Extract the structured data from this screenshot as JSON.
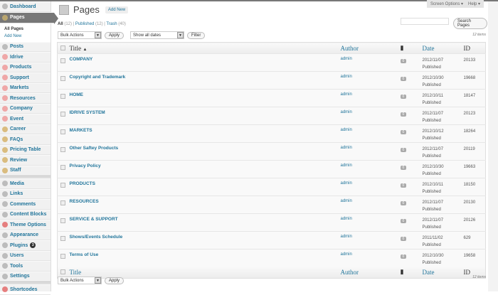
{
  "sidebar": {
    "items": [
      {
        "label": "Dashboard",
        "icon": "dashboard-icon",
        "color": "#999"
      },
      {
        "label": "Pages",
        "icon": "pages-icon",
        "current": true,
        "sub": [
          "All Pages",
          "Add New"
        ]
      },
      {
        "label": "Posts",
        "icon": "pin-icon",
        "color": "#999"
      },
      {
        "label": "Idrive",
        "icon": "custom-type-icon",
        "color": "#e77"
      },
      {
        "label": "Products",
        "icon": "custom-type-icon",
        "color": "#e77"
      },
      {
        "label": "Support",
        "icon": "custom-type-icon",
        "color": "#e77"
      },
      {
        "label": "Markets",
        "icon": "custom-type-icon",
        "color": "#e77"
      },
      {
        "label": "Resources",
        "icon": "custom-type-icon",
        "color": "#e77"
      },
      {
        "label": "Company",
        "icon": "custom-type-icon",
        "color": "#e77"
      },
      {
        "label": "Event",
        "icon": "custom-type-icon",
        "color": "#e77"
      },
      {
        "label": "Career",
        "icon": "blocks-icon",
        "color": "#c93"
      },
      {
        "label": "FAQs",
        "icon": "blocks-icon",
        "color": "#c93"
      },
      {
        "label": "Pricing Table",
        "icon": "blocks-icon",
        "color": "#c93"
      },
      {
        "label": "Review",
        "icon": "blocks-icon",
        "color": "#c93"
      },
      {
        "label": "Staff",
        "icon": "blocks-icon",
        "color": "#c93",
        "sep_after": true
      },
      {
        "label": "Media",
        "icon": "media-icon",
        "color": "#999"
      },
      {
        "label": "Links",
        "icon": "links-icon",
        "color": "#999"
      },
      {
        "label": "Comments",
        "icon": "comments-icon",
        "color": "#999"
      },
      {
        "label": "Content Blocks",
        "icon": "content-blocks-icon",
        "color": "#999"
      },
      {
        "label": "Theme Options",
        "icon": "theme-options-icon",
        "color": "#d33"
      },
      {
        "label": "Appearance",
        "icon": "appearance-icon",
        "color": "#999"
      },
      {
        "label": "Plugins",
        "icon": "plugins-icon",
        "color": "#999",
        "badge": "3"
      },
      {
        "label": "Users",
        "icon": "users-icon",
        "color": "#999"
      },
      {
        "label": "Tools",
        "icon": "tools-icon",
        "color": "#999"
      },
      {
        "label": "Settings",
        "icon": "settings-icon",
        "color": "#999",
        "sep_after": true
      },
      {
        "label": "Shortcodes",
        "icon": "shortcodes-icon",
        "color": "#d33"
      }
    ]
  },
  "header": {
    "title": "Pages",
    "add_new": "Add New",
    "screen_options": "Screen Options ▾",
    "help": "Help ▾"
  },
  "filters": {
    "all": "All",
    "all_count": "(12)",
    "published": "Published",
    "published_count": "(12)",
    "trash": "Trash",
    "trash_count": "(40)"
  },
  "search": {
    "value": "",
    "button": "Search Pages"
  },
  "actions": {
    "bulk": "Bulk Actions",
    "apply": "Apply",
    "dates": "Show all dates",
    "filter": "Filter"
  },
  "items_count": "12 items",
  "columns": {
    "title": "Title",
    "author": "Author",
    "date": "Date",
    "id": "ID"
  },
  "rows": [
    {
      "title": "COMPANY",
      "author": "admin",
      "comments": "0",
      "date": "2012/11/07",
      "status": "Published",
      "id": "20133"
    },
    {
      "title": "Copyright and Trademark",
      "author": "admin",
      "comments": "0",
      "date": "2012/10/30",
      "status": "Published",
      "id": "19668"
    },
    {
      "title": "HOME",
      "author": "admin",
      "comments": "0",
      "date": "2012/10/11",
      "status": "Published",
      "id": "18147"
    },
    {
      "title": "IDRIVE SYSTEM",
      "author": "admin",
      "comments": "0",
      "date": "2012/11/07",
      "status": "Published",
      "id": "20123"
    },
    {
      "title": "MARKETS",
      "author": "admin",
      "comments": "0",
      "date": "2012/10/12",
      "status": "Published",
      "id": "18264"
    },
    {
      "title": "Other Saftey Products",
      "author": "admin",
      "comments": "0",
      "date": "2012/11/07",
      "status": "Published",
      "id": "20119"
    },
    {
      "title": "Privacy Policy",
      "author": "admin",
      "comments": "0",
      "date": "2012/10/30",
      "status": "Published",
      "id": "19663"
    },
    {
      "title": "PRODUCTS",
      "author": "admin",
      "comments": "0",
      "date": "2012/10/11",
      "status": "Published",
      "id": "18150"
    },
    {
      "title": "RESOURCES",
      "author": "admin",
      "comments": "0",
      "date": "2012/11/07",
      "status": "Published",
      "id": "20130"
    },
    {
      "title": "SERVICE & SUPPORT",
      "author": "admin",
      "comments": "0",
      "date": "2012/11/07",
      "status": "Published",
      "id": "20126"
    },
    {
      "title": "Shows/Events Schedule",
      "author": "admin",
      "comments": "0",
      "date": "2011/11/02",
      "status": "Published",
      "id": "629"
    },
    {
      "title": "Terms of Use",
      "author": "admin",
      "comments": "0",
      "date": "2012/10/30",
      "status": "Published",
      "id": "19658"
    }
  ]
}
